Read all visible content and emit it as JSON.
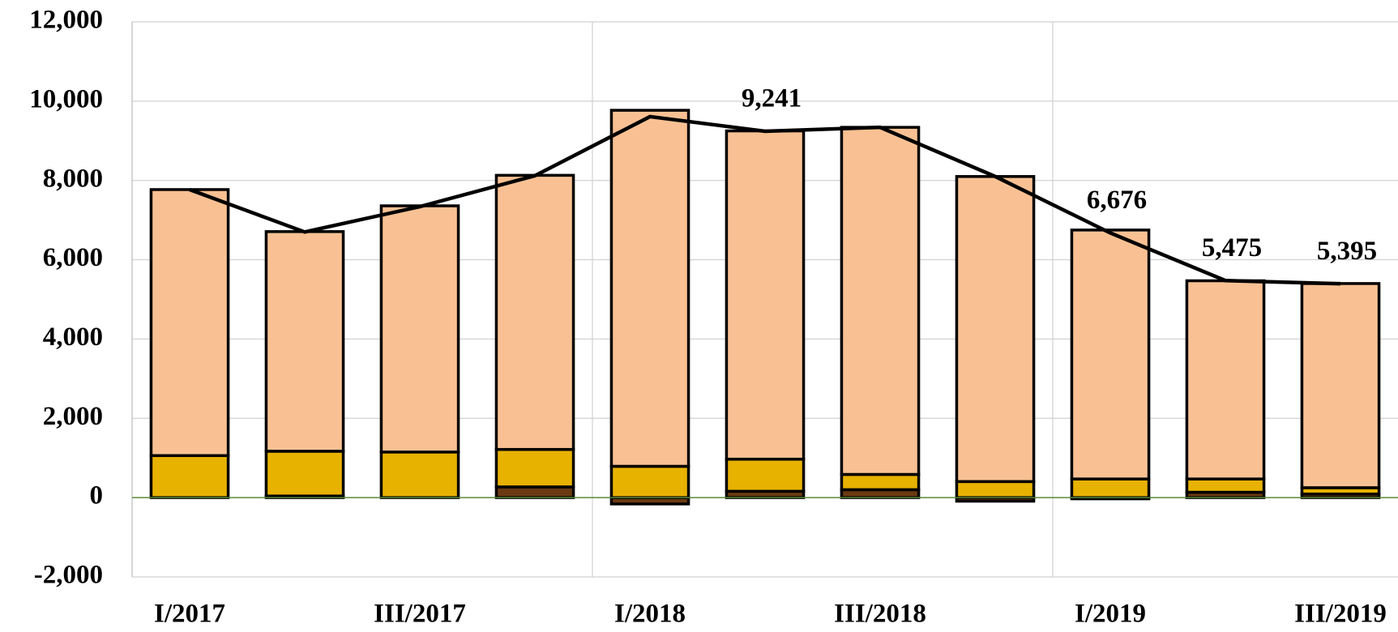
{
  "chart_data": {
    "type": "stacked_bar_line",
    "categories": [
      "I/2017",
      null,
      "III/2017",
      null,
      "I/2018",
      null,
      "III/2018",
      null,
      "I/2019",
      null,
      "III/2019"
    ],
    "series": [
      {
        "color": "#6b3a12",
        "values": [
          0,
          40,
          0,
          270,
          -160,
          160,
          200,
          -90,
          -30,
          135,
          90
        ]
      },
      {
        "color": "#e8b200",
        "values": [
          1060,
          1130,
          1150,
          945,
          790,
          810,
          385,
          405,
          470,
          335,
          160
        ]
      },
      {
        "color": "#f9c193",
        "values": [
          6710,
          5540,
          6210,
          6915,
          8980,
          8280,
          8755,
          7695,
          6280,
          5000,
          5150
        ]
      },
      {
        "type": "line",
        "color": "#000000",
        "values": [
          7770,
          6700,
          7340,
          8120,
          9610,
          9241,
          9340,
          8100,
          6676,
          5475,
          5395
        ],
        "value_labels": [
          null,
          null,
          null,
          null,
          null,
          "9,241",
          null,
          null,
          "6,676",
          "5,475",
          "5,395"
        ]
      }
    ],
    "ylim": [
      -2000,
      12000
    ],
    "yticks": [
      {
        "value": -2000,
        "label": "-2,000"
      },
      0,
      {
        "value": 2000,
        "label": "2,000"
      },
      {
        "value": 4000,
        "label": "4,000"
      },
      {
        "value": 6000,
        "label": "6,000"
      },
      {
        "value": 8000,
        "label": "8,000"
      },
      {
        "value": 10000,
        "label": "10,000"
      },
      {
        "value": 12000,
        "label": "12,000"
      }
    ],
    "grid": true,
    "zero_line_color": "#5a8a3a"
  }
}
